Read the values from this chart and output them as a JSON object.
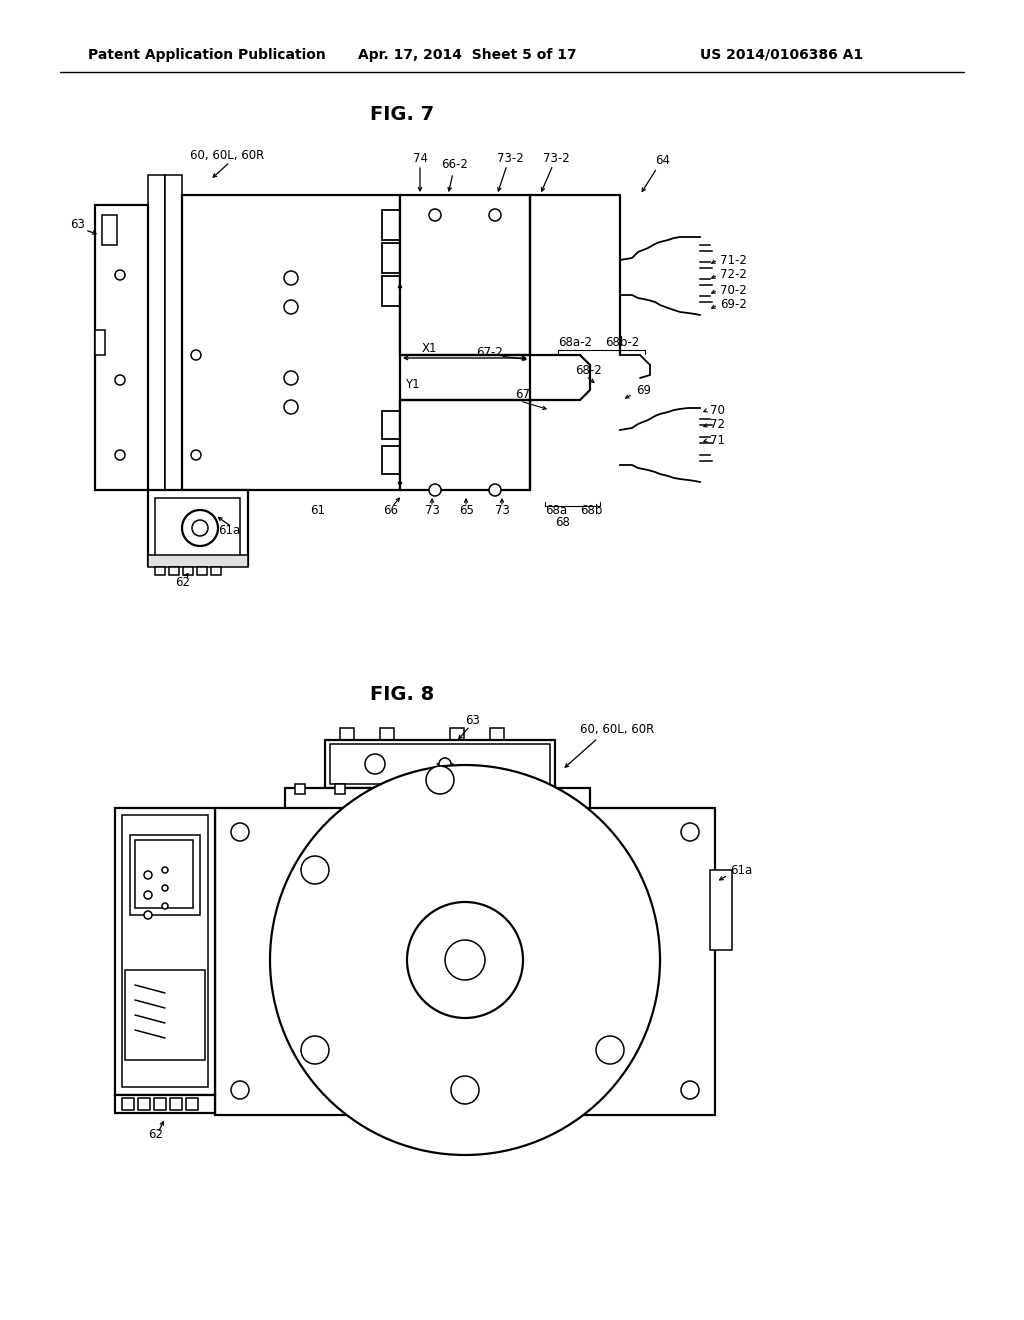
{
  "bg_color": "#ffffff",
  "header_left": "Patent Application Publication",
  "header_center": "Apr. 17, 2014  Sheet 5 of 17",
  "header_right": "US 2014/0106386 A1",
  "fig7_title": "FIG. 7",
  "fig8_title": "FIG. 8"
}
